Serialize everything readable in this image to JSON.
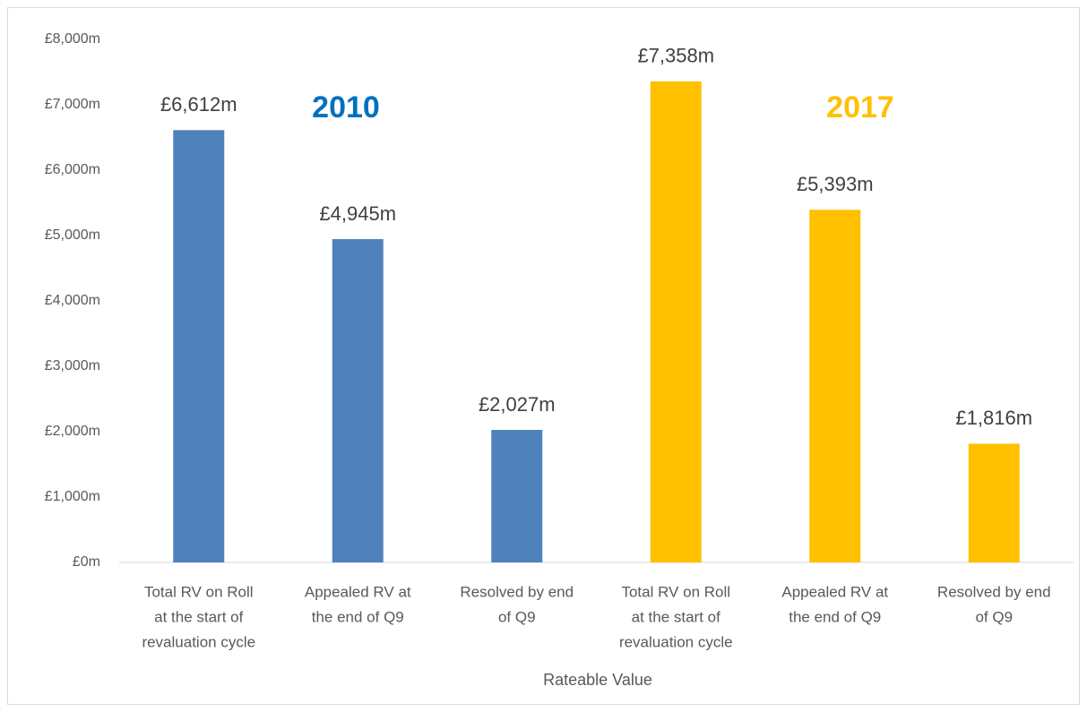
{
  "chart_data": {
    "type": "bar",
    "categories": [
      [
        "Total RV on Roll",
        "at the start of",
        "revaluation cycle"
      ],
      [
        "Appealed RV at",
        "the end of Q9"
      ],
      [
        "Resolved by end",
        "of Q9"
      ],
      [
        "Total RV on Roll",
        "at the start of",
        "revaluation cycle"
      ],
      [
        "Appealed RV at",
        "the end of Q9"
      ],
      [
        "Resolved by end",
        "of Q9"
      ]
    ],
    "values": [
      6612,
      4945,
      2027,
      7358,
      5393,
      1816
    ],
    "value_labels": [
      "£6,612m",
      "£4,945m",
      "£2,027m",
      "£7,358m",
      "£5,393m",
      "£1,816m"
    ],
    "colors": [
      "#4f81bd",
      "#4f81bd",
      "#4f81bd",
      "#ffc000",
      "#ffc000",
      "#ffc000"
    ],
    "xlabel": "Rateable Value",
    "annotations": [
      {
        "text": "2010",
        "color": "#0070c0"
      },
      {
        "text": "2017",
        "color": "#ffc000"
      }
    ],
    "ylim": [
      0,
      8000
    ],
    "yticks": [
      {
        "value": 0,
        "label": "£0m"
      },
      {
        "value": 1000,
        "label": "£1,000m"
      },
      {
        "value": 2000,
        "label": "£2,000m"
      },
      {
        "value": 3000,
        "label": "£3,000m"
      },
      {
        "value": 4000,
        "label": "£4,000m"
      },
      {
        "value": 5000,
        "label": "£5,000m"
      },
      {
        "value": 6000,
        "label": "£6,000m"
      },
      {
        "value": 7000,
        "label": "£7,000m"
      },
      {
        "value": 8000,
        "label": "£8,000m"
      }
    ],
    "grid": false
  }
}
